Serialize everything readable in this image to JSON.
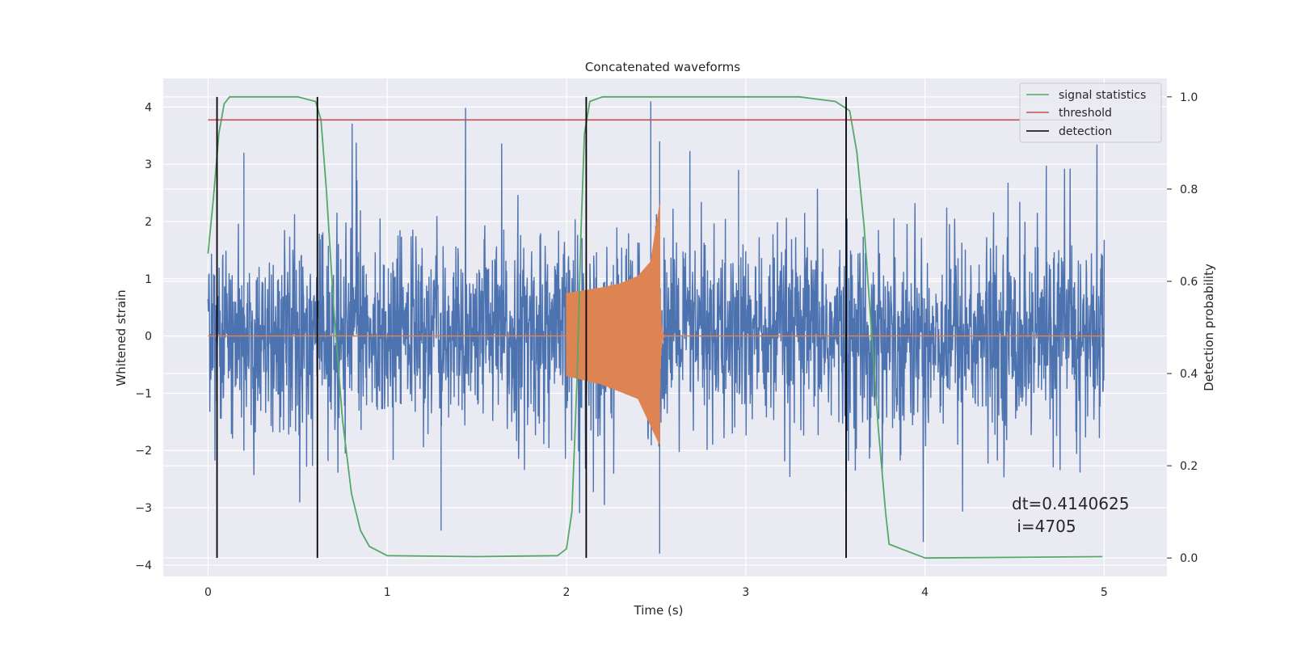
{
  "chart_data": {
    "type": "line",
    "title": "Concatenated waveforms",
    "xlabel": "Time (s)",
    "ylabel": "Whitened strain",
    "y2label": "Detection probability",
    "xlim": [
      -0.25,
      5.35
    ],
    "ylim": [
      -4.2,
      4.5
    ],
    "y2lim": [
      -0.04,
      1.04
    ],
    "x_ticks": [
      0,
      1,
      2,
      3,
      4,
      5
    ],
    "y_ticks": [
      -4,
      -3,
      -2,
      -1,
      0,
      1,
      2,
      3,
      4
    ],
    "y2_ticks": [
      0.0,
      0.2,
      0.4,
      0.6,
      0.8,
      1.0
    ],
    "x_tick_labels": [
      "0",
      "1",
      "2",
      "3",
      "4",
      "5"
    ],
    "y_tick_labels": [
      "−4",
      "−3",
      "−2",
      "−1",
      "0",
      "1",
      "2",
      "3",
      "4"
    ],
    "y2_tick_labels": [
      "0.0",
      "0.2",
      "0.4",
      "0.6",
      "0.8",
      "1.0"
    ],
    "grid": true,
    "legend_position": "top-right",
    "colors": {
      "strain": "#4c72b0",
      "waveform": "#dd8452",
      "signal_statistics": "#55a868",
      "threshold": "#c44e52",
      "detection": "#000000",
      "plot_background": "#eaeaf2",
      "grid": "#ffffff"
    },
    "series": [
      {
        "name": "",
        "kind": "noise",
        "axis": "left",
        "x_range": [
          0,
          5
        ],
        "y_range_approx": [
          -3.6,
          4.1
        ],
        "notable_peaks": [
          {
            "x": 0.2,
            "y": 3.2
          },
          {
            "x": 1.3,
            "y": -3.4
          },
          {
            "x": 2.47,
            "y": 4.1
          },
          {
            "x": 2.52,
            "y": 3.4
          },
          {
            "x": 2.52,
            "y": -3.8
          },
          {
            "x": 2.96,
            "y": 2.9
          }
        ]
      },
      {
        "name": "",
        "kind": "chirp",
        "axis": "left",
        "x_range": [
          0,
          5
        ],
        "chirp_start": 2.0,
        "chirp_peak": 2.52,
        "chirp_end_x": 2.55,
        "envelope": [
          [
            2.0,
            0.75
          ],
          [
            2.1,
            0.8
          ],
          [
            2.2,
            0.85
          ],
          [
            2.3,
            0.92
          ],
          [
            2.4,
            1.05
          ],
          [
            2.47,
            1.3
          ],
          [
            2.52,
            2.3
          ]
        ],
        "envelope_min": [
          [
            2.0,
            -0.7
          ],
          [
            2.2,
            -0.85
          ],
          [
            2.4,
            -1.1
          ],
          [
            2.52,
            -1.9
          ]
        ]
      },
      {
        "name": "signal statistics",
        "axis": "right",
        "x": [
          0.0,
          0.03,
          0.06,
          0.09,
          0.12,
          0.2,
          0.5,
          0.6,
          0.63,
          0.66,
          0.7,
          0.75,
          0.8,
          0.85,
          0.9,
          1.0,
          1.5,
          1.95,
          2.0,
          2.03,
          2.06,
          2.08,
          2.1,
          2.13,
          2.2,
          3.3,
          3.5,
          3.58,
          3.62,
          3.66,
          3.7,
          3.74,
          3.78,
          3.8,
          4.0,
          4.99
        ],
        "y": [
          0.66,
          0.78,
          0.92,
          0.985,
          1.0,
          1.0,
          1.0,
          0.99,
          0.95,
          0.8,
          0.55,
          0.3,
          0.14,
          0.06,
          0.025,
          0.005,
          0.003,
          0.005,
          0.02,
          0.1,
          0.4,
          0.7,
          0.92,
          0.99,
          1.0,
          1.0,
          0.99,
          0.97,
          0.88,
          0.72,
          0.5,
          0.28,
          0.1,
          0.03,
          0.0,
          0.003
        ]
      },
      {
        "name": "threshold",
        "axis": "right",
        "x": [
          0,
          5
        ],
        "y": [
          0.95,
          0.95
        ]
      }
    ],
    "detections": {
      "name": "detection",
      "x": [
        0.05,
        0.61,
        2.11,
        3.56
      ],
      "y_range": [
        0.0,
        1.0
      ]
    },
    "legend": [
      "signal statistics",
      "threshold",
      "detection"
    ],
    "annotation_lines": [
      "dt=0.4140625",
      " i=4705"
    ]
  }
}
